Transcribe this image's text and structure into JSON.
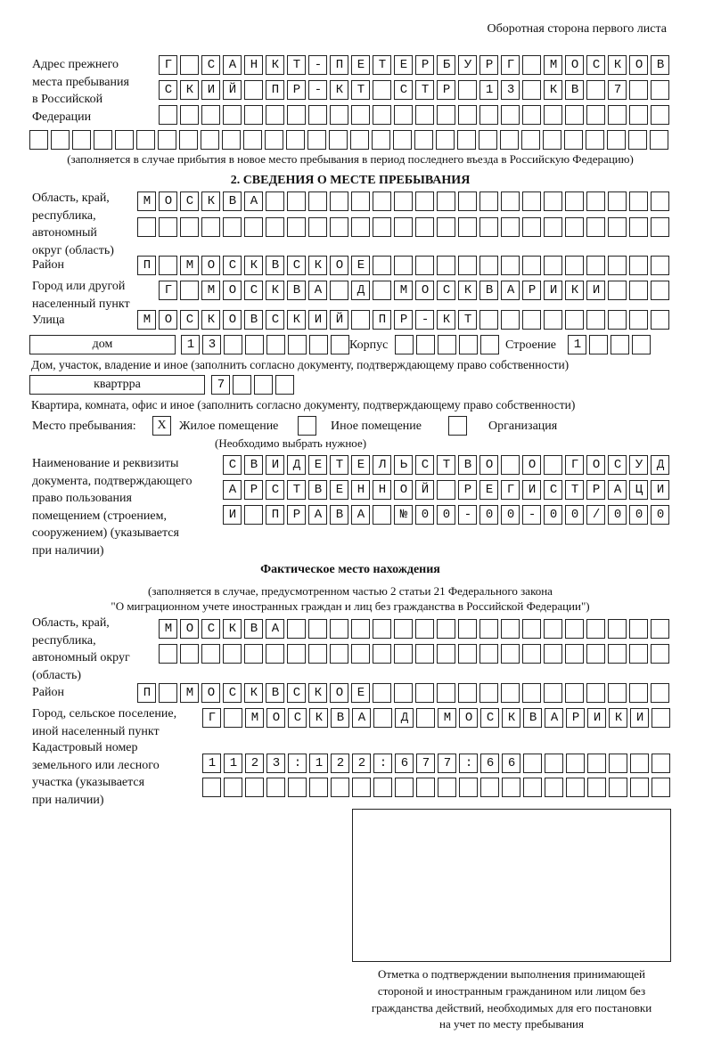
{
  "header": "Оборотная сторона первого листа",
  "previous_address": {
    "label": [
      "Адрес прежнего",
      "места пребывания",
      "в Российской",
      "Федерации"
    ],
    "rows": [
      "Г САНКТ-ПЕТЕРБУРГ МОСКОВ",
      "СКИЙ ПР-КТ СТР 13 КВ 7  ",
      "                        ",
      "                              "
    ],
    "note": "(заполняется в случае прибытия в новое место пребывания в период последнего въезда в Российскую Федерацию)"
  },
  "section2": {
    "title": "2. СВЕДЕНИЯ О МЕСТЕ ПРЕБЫВАНИЯ",
    "region_label": [
      "Область, край,",
      "республика,",
      "автономный",
      "округ (область)"
    ],
    "region_rows": [
      "МОСКВА                   ",
      "                         "
    ],
    "district_label": "Район",
    "district_row": "П МОСКВСКОЕ              ",
    "city_label": [
      "Город или другой",
      "населенный пункт"
    ],
    "city_row": "Г МОСКВА Д МОСКВАРИКИ   ",
    "street_label": "Улица",
    "street_row": "МОСКОВСКИЙ ПР-КТ         ",
    "house_type": "дом",
    "house_number": "13      ",
    "korpus_label": "Корпус",
    "korpus": "     ",
    "stroenie_label": "Строение",
    "stroenie": "1   ",
    "house_note": "Дом, участок, владение и иное (заполнить согласно документу, подтверждающему право собственности)",
    "apt_type": "квартрра",
    "apt_number": "7   ",
    "apt_note": "Квартира, комната, офис и иное (заполнить согласно документу, подтверждающему право собственности)",
    "stay_place_label": "Место пребывания:",
    "stay_options": [
      {
        "label": "Жилое помещение",
        "mark": "X"
      },
      {
        "label": "Иное помещение",
        "mark": ""
      },
      {
        "label": "Организация",
        "mark": ""
      }
    ],
    "stay_note": "(Необходимо выбрать нужное)",
    "document_label": [
      "Наименование и реквизиты",
      "документа, подтверждающего",
      "право пользования",
      "помещением (строением,",
      "сооружением) (указывается",
      "при наличии)"
    ],
    "document_rows": [
      "СВИДЕТЕЛЬСТВО О ГОСУД",
      "АРСТВЕННОЙ РЕГИСТРАЦИ",
      "И ПРАВА №00-00-00/000"
    ]
  },
  "actual": {
    "title": "Фактическое место нахождения",
    "subtitle": [
      "(заполняется в случае, предусмотренном частью 2 статьи 21 Федерального закона",
      "\"О миграционном учете иностранных граждан и лиц без гражданства в Российской Федерации\")"
    ],
    "region_label": [
      "Область, край,",
      "республика,",
      "автономный округ",
      "(область)"
    ],
    "region_rows": [
      "МОСКВА                  ",
      "                        "
    ],
    "district_label": "Район",
    "district_row": "П МОСКВСКОЕ              ",
    "city_label": [
      "Город, сельское поселение,",
      "иной населенный пункт"
    ],
    "city_row": "Г МОСКВА Д МОСКВАРИКИ ",
    "cadastral_label": [
      "Кадастровый номер",
      "земельного или лесного",
      "участка (указывается",
      "при наличии)"
    ],
    "cadastral_rows": [
      "1123:122:677:66       ",
      "                      "
    ]
  },
  "confirmation_caption": [
    "Отметка о подтверждении выполнения принимающей",
    "стороной и иностранным гражданином или лицом без",
    "гражданства действий, необходимых для его постановки",
    "на учет по месту пребывания"
  ]
}
